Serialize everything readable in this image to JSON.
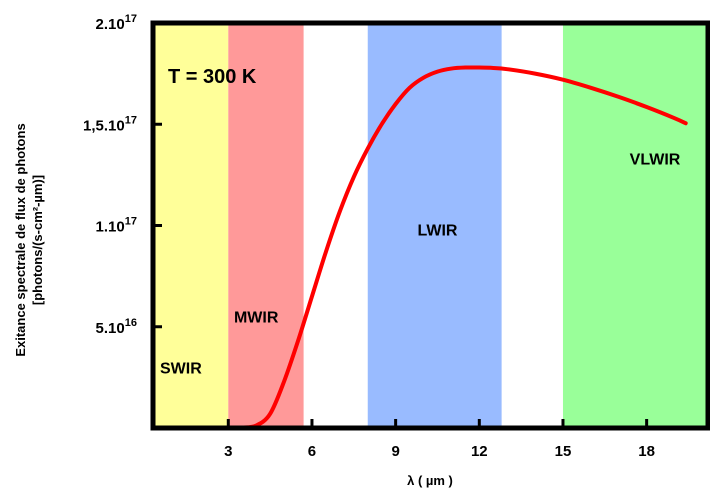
{
  "chart_data": {
    "type": "line",
    "title": "",
    "annotation": "T = 300 K",
    "xlabel": "λ ( µm )",
    "ylabel_line1": "Exitance spectrale de flux de photons",
    "ylabel_line2": "[photons/(s-cm²-µm)]",
    "xlim": [
      0.3,
      20.2
    ],
    "ylim": [
      0,
      2e+17
    ],
    "grid": false,
    "x_ticks": [
      {
        "value": 3,
        "label": "3"
      },
      {
        "value": 6,
        "label": "6"
      },
      {
        "value": 9,
        "label": "9"
      },
      {
        "value": 12,
        "label": "12"
      },
      {
        "value": 15,
        "label": "15"
      },
      {
        "value": 18,
        "label": "18"
      }
    ],
    "y_ticks": [
      {
        "value": 5e+16,
        "mantissa": "5.10",
        "exp": "16"
      },
      {
        "value": 1e+17,
        "mantissa": "1.10",
        "exp": "17"
      },
      {
        "value": 1.5e+17,
        "mantissa": "1,5.10",
        "exp": "17"
      },
      {
        "value": 2e+17,
        "mantissa": "2.10",
        "exp": "17"
      }
    ],
    "bands": [
      {
        "label": "SWIR",
        "x_start": 0.3,
        "x_end": 3.0,
        "color": "#ffff99",
        "label_x": 1.3,
        "label_y": 3e+16
      },
      {
        "label": "MWIR",
        "x_start": 3.0,
        "x_end": 5.7,
        "color": "#ff9999",
        "label_x": 4.0,
        "label_y": 5.5e+16
      },
      {
        "label": "LWIR",
        "x_start": 8.0,
        "x_end": 12.8,
        "color": "#99bbff",
        "label_x": 10.5,
        "label_y": 9.8e+16
      },
      {
        "label": "VLWIR",
        "x_start": 15.0,
        "x_end": 20.2,
        "color": "#99ff99",
        "label_x": 18.3,
        "label_y": 1.33e+17
      }
    ],
    "series": [
      {
        "color": "#ff0000",
        "x": [
          3.0,
          3.5,
          4.0,
          4.5,
          5.0,
          5.5,
          6.0,
          6.5,
          7.0,
          7.5,
          8.0,
          8.5,
          9.0,
          9.5,
          10.0,
          10.5,
          11.0,
          11.5,
          12.0,
          12.5,
          13.0,
          14.0,
          15.0,
          16.0,
          17.0,
          18.0,
          19.0,
          19.4
        ],
        "values": [
          0,
          200000000000000.0,
          1200000000000000.0,
          7000000000000000.0,
          2.3e+16,
          4.3e+16,
          6.5e+16,
          8.7e+16,
          1.07e+17,
          1.24e+17,
          1.38e+17,
          1.5e+17,
          1.6e+17,
          1.68e+17,
          1.73e+17,
          1.76e+17,
          1.775e+17,
          1.78e+17,
          1.78e+17,
          1.778e+17,
          1.772e+17,
          1.75e+17,
          1.72e+17,
          1.68e+17,
          1.635e+17,
          1.585e+17,
          1.53e+17,
          1.505e+17
        ]
      }
    ]
  }
}
